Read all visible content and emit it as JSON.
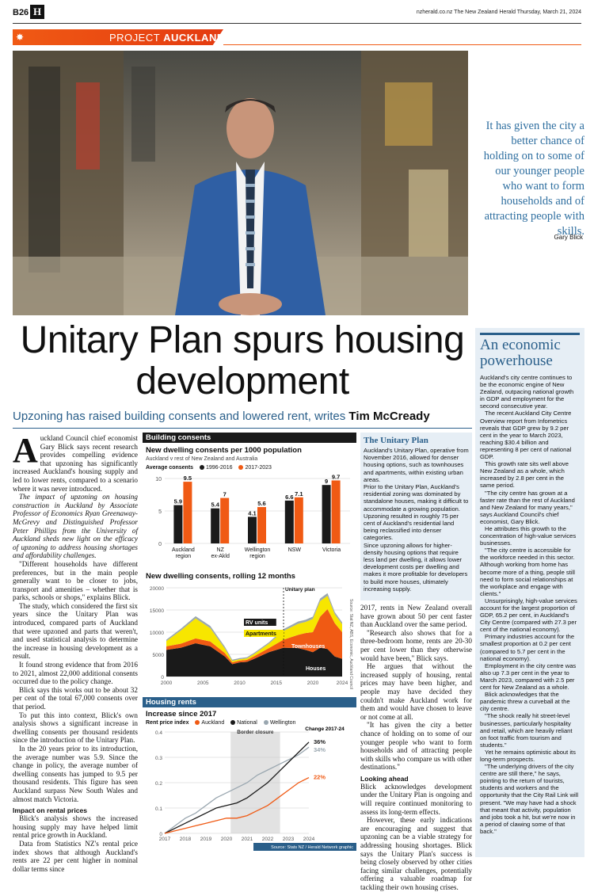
{
  "header": {
    "page": "B26",
    "logo": "H",
    "right": "nzherald.co.nz  The New Zealand Herald  Thursday, March 21, 2024"
  },
  "section": {
    "prefix": "PROJECT",
    "name": "AUCKLAND"
  },
  "pull_quote": {
    "text": "It has given the city a better chance of holding on to some of our younger people who want to form households and of attracting people with skills.",
    "by": "Gary Blick"
  },
  "headline": "Unitary Plan spurs housing development",
  "standfirst": {
    "text": "Upzoning has raised building consents and lowered rent, writes",
    "author": "Tim McCready"
  },
  "body_col1": {
    "dropcap": "A",
    "p1": "uckland Council chief economist Gary Blick says recent research provides compelling evidence that upzoning has significantly increased Auckland's housing supply and led to lower rents, compared to a scenario where it was never introduced.",
    "p2": "The impact of upzoning on housing construction in Auckland by Associate Professor of Economics Ryan Greenaway-McGrevy and Distinguished Professor Peter Phillips from the University of Auckland sheds new light on the efficacy of upzoning to address housing shortages and affordability challenges.",
    "p3": "\"Different households have different preferences, but in the main people generally want to be closer to jobs, transport and amenities – whether that is parks, schools or shops,\" explains Blick.",
    "p4": "The study, which considered the first six years since the Unitary Plan was introduced, compared parts of Auckland that were upzoned and parts that weren't, and used statistical analysis to determine the increase in housing development as a result.",
    "p5": "It found strong evidence that from 2016 to 2021, almost 22,000 additional consents occurred due to the policy change.",
    "p6": "Blick says this works out to be about 32 per cent of the total 67,000 consents over that period.",
    "p7": "To put this into context, Blick's own analysis shows a significant increase in dwelling consents per thousand residents since the introduction of the Unitary Plan.",
    "p8": "In the 20 years prior to its introduction, the average number was 5.9. Since the change in policy, the average number of dwelling consents has jumped to 9.5 per thousand residents. This figure has seen Auckland surpass New South Wales and almost match Victoria.",
    "sub": "Impact on rental prices",
    "p9": "Blick's analysis shows the increased housing supply may have helped limit rental price growth in Auckland.",
    "p10": "Data from Statistics NZ's rental price index shows that although Auckland's rents are 22 per cent higher in nominal dollar terms since"
  },
  "unitary_box": {
    "title": "The Unitary Plan",
    "p1": "Auckland's Unitary Plan, operative from November 2016, allowed for denser housing options, such as townhouses and apartments, within existing urban areas.",
    "p2": "Prior to the Unitary Plan, Auckland's residential zoning was dominated by standalone houses, making it difficult to accommodate a growing population.",
    "p3": "Upzoning resulted in roughly 75 per cent of Auckland's residential land being reclassified into denser categories.",
    "p4": "Since upzoning allows for higher-density housing options that require less land per dwelling, it allows lower development costs per dwelling and makes it more profitable for developers to build more houses, ultimately increasing supply."
  },
  "body_col3": {
    "p1": "2017, rents in New Zealand overall have grown about 50 per cent faster than Auckland over the same period.",
    "p2": "\"Research also shows that for a three-bedroom home, rents are 20-30 per cent lower than they otherwise would have been,\" Blick says.",
    "p3": "He argues that without the increased supply of housing, rental prices may have been higher, and people may have decided they couldn't make Auckland work for them and would have chosen to leave or not come at all.",
    "p4": "\"It has given the city a better chance of holding on to some of our younger people who want to form households and of attracting people with skills who compare us with other destinations.\"",
    "sub": "Looking ahead",
    "p5": "Blick acknowledges development under the Unitary Plan is ongoing and will require continued monitoring to assess its long-term effects.",
    "p6": "However, these early indications are encouraging and suggest that upzoning can be a viable strategy for addressing housing shortages. Blick says the Unitary Plan's success is being closely observed by other cities facing similar challenges, potentially offering a valuable roadmap for tackling their own housing crises."
  },
  "sidebar": {
    "title": "An economic powerhouse",
    "p1": "Auckland's city centre continues to be the economic engine of New Zealand, outpacing national growth in GDP and employment for the second consecutive year.",
    "p2": "The recent Auckland City Centre Overview report from Infometrics reveals that GDP grew by 9.2 per cent in the year to March 2023, reaching $30.4 billion and representing 8 per cent of national GDP.",
    "p3": "This growth rate sits well above New Zealand as a whole, which increased by 2.8 per cent in the same period.",
    "p4": "\"The city centre has grown at a faster rate than the rest of Auckland and New Zealand for many years,\" says Auckland Council's chief economist, Gary Blick.",
    "p5": "He attributes this growth to the concentration of high-value services businesses.",
    "p6": "\"The city centre is accessible for the workforce needed in this sector. Although working from home has become more of a thing, people still need to form social relationships at the workplace and engage with clients.\"",
    "p7": "Unsurprisingly, high-value services account for the largest proportion of GDP, 65.2 per cent, in Auckland's City Centre (compared with 27.3 per cent of the national economy).",
    "p8": "Primary industries account for the smallest proportion at 0.2 per cent (compared to 5.7 per cent in the national economy).",
    "p9": "Employment in the city centre was also up 7.3 per cent in the year to March 2023, compared with 2.5 per cent for New Zealand as a whole.",
    "p10": "Blick acknowledges that the pandemic threw a curveball at the city centre.",
    "p11": "\"The shock really hit street-level businesses, particularly hospitality and retail, which are heavily reliant on foot traffic from tourism and students.\"",
    "p12": "Yet he remains optimistic about its long-term prospects.",
    "p13": "\"The underlying drivers of the city centre are still there,\" he says, pointing to the return of tourists, students and workers and the opportunity that the City Rail Link will present. \"We may have had a shock that meant that activity, population and jobs took a hit, but we're now in a period of clawing some of that back.\""
  },
  "colors": {
    "orange": "#f05a14",
    "blue": "#2a5f8a",
    "dark": "#1a1a1a",
    "yellow": "#f7e600",
    "grey": "#9aa7b0"
  },
  "chart_data": [
    {
      "type": "bar",
      "panel": "Building consents",
      "title": "New dwelling consents per 1000 population",
      "subtitle": "Auckland v rest of New Zealand and Australia",
      "legend_title": "Average consents",
      "categories": [
        "Auckland region",
        "NZ ex-Akld",
        "Wellington region",
        "NSW",
        "Victoria"
      ],
      "series": [
        {
          "name": "1996-2016",
          "color": "#1a1a1a",
          "values": [
            5.9,
            5.4,
            4.1,
            6.6,
            9
          ]
        },
        {
          "name": "2017-2023",
          "color": "#f05a14",
          "values": [
            9.5,
            7,
            5.6,
            7.1,
            9.7
          ]
        }
      ],
      "yticks": [
        "0",
        "5",
        "10"
      ],
      "ylim": [
        0,
        10
      ]
    },
    {
      "type": "area",
      "title": "New dwelling consents, rolling 12 months",
      "x": [
        2000,
        2002,
        2004,
        2006,
        2008,
        2009,
        2010,
        2011,
        2012,
        2014,
        2016,
        2018,
        2019,
        2020,
        2021,
        2022,
        2023,
        2024
      ],
      "series": [
        {
          "name": "Houses",
          "color": "#1a1a1a",
          "values": [
            6000,
            6500,
            7500,
            6800,
            4500,
            2800,
            3200,
            3300,
            4000,
            5500,
            6500,
            6400,
            6000,
            5500,
            6500,
            6200,
            4500,
            4000
          ]
        },
        {
          "name": "Townhouses",
          "color": "#f05a14",
          "values": [
            800,
            900,
            1100,
            1100,
            800,
            400,
            400,
            450,
            600,
            900,
            1800,
            3000,
            3800,
            4500,
            7000,
            9000,
            7500,
            6000
          ]
        },
        {
          "name": "Apartments",
          "color": "#f7e600",
          "values": [
            1200,
            3000,
            4500,
            3000,
            1000,
            300,
            300,
            350,
            500,
            1000,
            2000,
            2500,
            2500,
            3000,
            3500,
            3000,
            2000,
            1800
          ]
        },
        {
          "name": "RV units",
          "color": "#9aa7b0",
          "values": [
            300,
            400,
            500,
            500,
            400,
            300,
            250,
            250,
            250,
            300,
            400,
            500,
            500,
            500,
            600,
            600,
            500,
            400
          ]
        }
      ],
      "annotation": "Unitary plan",
      "source": "Source: Stat NZ, ABS, Economic, Auckland Council",
      "yticks": [
        "0",
        "5000",
        "10000",
        "15000",
        "20000"
      ],
      "xticks": [
        "2000",
        "2005",
        "2010",
        "2015",
        "2020",
        "2024"
      ],
      "ylim": [
        0,
        20000
      ]
    },
    {
      "type": "line",
      "panel": "Housing rents",
      "title": "Increase since 2017",
      "legend_title": "Rent price index",
      "x": [
        2017,
        2017.5,
        2018,
        2018.5,
        2019,
        2019.5,
        2020,
        2020.5,
        2021,
        2021.5,
        2022,
        2022.5,
        2023,
        2023.5,
        2024
      ],
      "series": [
        {
          "name": "Auckland",
          "color": "#f05a14",
          "values": [
            0,
            0.01,
            0.02,
            0.03,
            0.04,
            0.05,
            0.06,
            0.06,
            0.07,
            0.09,
            0.11,
            0.14,
            0.17,
            0.2,
            0.22
          ]
        },
        {
          "name": "National",
          "color": "#1a1a1a",
          "values": [
            0,
            0.02,
            0.04,
            0.06,
            0.08,
            0.1,
            0.11,
            0.12,
            0.14,
            0.17,
            0.2,
            0.24,
            0.28,
            0.32,
            0.36
          ]
        },
        {
          "name": "Wellington",
          "color": "#9aa7b0",
          "values": [
            0,
            0.03,
            0.06,
            0.08,
            0.11,
            0.14,
            0.16,
            0.18,
            0.2,
            0.23,
            0.25,
            0.27,
            0.29,
            0.31,
            0.34
          ]
        }
      ],
      "change_label": "Change 2017-24",
      "end_labels": [
        "36%",
        "34%",
        "22%"
      ],
      "annotation": "Border closure",
      "yticks": [
        "0",
        "0.1",
        "0.2",
        "0.3",
        "0.4"
      ],
      "xticks": [
        "2017",
        "2018",
        "2019",
        "2020",
        "2021",
        "2022",
        "2023",
        "2024"
      ],
      "ylim": [
        0,
        0.4
      ],
      "source": "Source: Stats NZ / Herald Network graphic"
    }
  ]
}
